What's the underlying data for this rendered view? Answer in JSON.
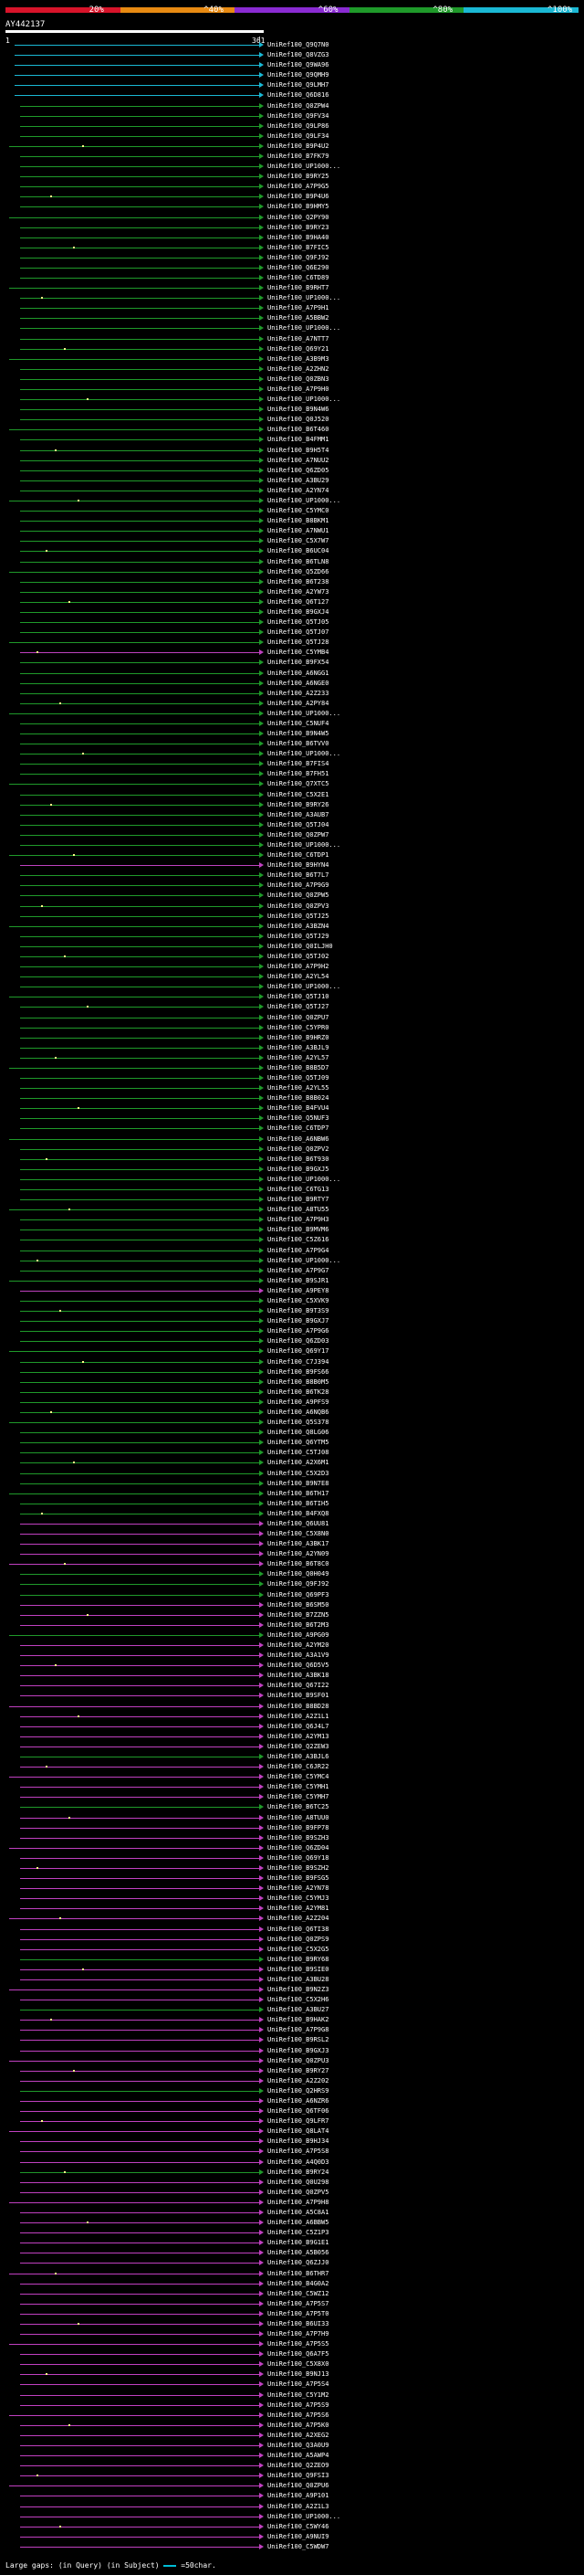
{
  "scale": {
    "segments": [
      {
        "color": "#d8142a"
      },
      {
        "color": "#e88a12"
      },
      {
        "color": "#8a2bd2"
      },
      {
        "color": "#1f9a2a"
      },
      {
        "color": "#1ab8d4"
      }
    ],
    "labels": [
      "20%",
      "^40%",
      "^60%",
      "^80%",
      "^100%"
    ]
  },
  "query": {
    "id": "AY442137",
    "start": "1",
    "end": "361"
  },
  "colors": {
    "cyan": "#1ab8d4",
    "green": "#1f9a2a",
    "magenta": "#c040c0",
    "dot": "#ffff80"
  },
  "rows": [
    {
      "l": "UniRef100_Q9Q7N0",
      "c": "cyan"
    },
    {
      "l": "UniRef100_Q8VZG3",
      "c": "cyan"
    },
    {
      "l": "UniRef100_Q9WA96",
      "c": "cyan"
    },
    {
      "l": "UniRef100_Q9QMH9",
      "c": "cyan"
    },
    {
      "l": "UniRef100_Q9LMH7",
      "c": "cyan"
    },
    {
      "l": "UniRef100_Q6D816",
      "c": "cyan"
    },
    {
      "l": "UniRef100_Q0ZPW4",
      "c": "green"
    },
    {
      "l": "UniRef100_Q9FV34",
      "c": "green"
    },
    {
      "l": "UniRef100_Q9LP86",
      "c": "green"
    },
    {
      "l": "UniRef100_Q9LF34",
      "c": "green"
    },
    {
      "l": "UniRef100_B9P4U2",
      "c": "green"
    },
    {
      "l": "UniRef100_B7FK79",
      "c": "green"
    },
    {
      "l": "UniRef100_UP1000...",
      "c": "green"
    },
    {
      "l": "UniRef100_B9RY25",
      "c": "green"
    },
    {
      "l": "UniRef100_A7P9G5",
      "c": "green"
    },
    {
      "l": "UniRef100_B9P4U6",
      "c": "green"
    },
    {
      "l": "UniRef100_B9HMY5",
      "c": "green"
    },
    {
      "l": "UniRef100_Q2PY90",
      "c": "green"
    },
    {
      "l": "UniRef100_B9RY23",
      "c": "green"
    },
    {
      "l": "UniRef100_B9HA40",
      "c": "green"
    },
    {
      "l": "UniRef100_B7FIC5",
      "c": "green"
    },
    {
      "l": "UniRef100_Q9FJ92",
      "c": "green"
    },
    {
      "l": "UniRef100_Q6E290",
      "c": "green"
    },
    {
      "l": "UniRef100_C6TD89",
      "c": "green"
    },
    {
      "l": "UniRef100_B9RHT7",
      "c": "green"
    },
    {
      "l": "UniRef100_UP1000...",
      "c": "green"
    },
    {
      "l": "UniRef100_A7P9H1",
      "c": "green"
    },
    {
      "l": "UniRef100_A5BBW2",
      "c": "green"
    },
    {
      "l": "UniRef100_UP1000...",
      "c": "green"
    },
    {
      "l": "UniRef100_A7NTT7",
      "c": "green"
    },
    {
      "l": "UniRef100_Q69Y21",
      "c": "green"
    },
    {
      "l": "UniRef100_A3B9M3",
      "c": "green"
    },
    {
      "l": "UniRef100_A2ZHN2",
      "c": "green"
    },
    {
      "l": "UniRef100_Q0ZBN3",
      "c": "green"
    },
    {
      "l": "UniRef100_A7P9H0",
      "c": "green"
    },
    {
      "l": "UniRef100_UP1000...",
      "c": "green"
    },
    {
      "l": "UniRef100_B9N4W6",
      "c": "green"
    },
    {
      "l": "UniRef100_Q0J520",
      "c": "green"
    },
    {
      "l": "UniRef100_B6T460",
      "c": "green"
    },
    {
      "l": "UniRef100_B4FMM1",
      "c": "green"
    },
    {
      "l": "UniRef100_B9H5T4",
      "c": "green"
    },
    {
      "l": "UniRef100_A7NUU2",
      "c": "green"
    },
    {
      "l": "UniRef100_Q6ZD05",
      "c": "green"
    },
    {
      "l": "UniRef100_A3BU29",
      "c": "green"
    },
    {
      "l": "UniRef100_A2YN74",
      "c": "green"
    },
    {
      "l": "UniRef100_UP1000...",
      "c": "green"
    },
    {
      "l": "UniRef100_C5YMC0",
      "c": "green"
    },
    {
      "l": "UniRef100_B8BKM1",
      "c": "green"
    },
    {
      "l": "UniRef100_A7NWU1",
      "c": "green"
    },
    {
      "l": "UniRef100_C5X7W7",
      "c": "green"
    },
    {
      "l": "UniRef100_B6UC04",
      "c": "green"
    },
    {
      "l": "UniRef100_B6TLN8",
      "c": "green"
    },
    {
      "l": "UniRef100_Q5ZD66",
      "c": "green"
    },
    {
      "l": "UniRef100_B6T238",
      "c": "green"
    },
    {
      "l": "UniRef100_A2YW73",
      "c": "green"
    },
    {
      "l": "UniRef100_Q6T127",
      "c": "green"
    },
    {
      "l": "UniRef100_B9GXJ4",
      "c": "green"
    },
    {
      "l": "UniRef100_Q5TJ05",
      "c": "green"
    },
    {
      "l": "UniRef100_Q5TJ07",
      "c": "green"
    },
    {
      "l": "UniRef100_Q5TJ28",
      "c": "green"
    },
    {
      "l": "UniRef100_C5YMB4",
      "c": "magenta"
    },
    {
      "l": "UniRef100_B9FX54",
      "c": "green"
    },
    {
      "l": "UniRef100_A6NGG1",
      "c": "green"
    },
    {
      "l": "UniRef100_A6NGE0",
      "c": "green"
    },
    {
      "l": "UniRef100_A2Z233",
      "c": "green"
    },
    {
      "l": "UniRef100_A2PY84",
      "c": "green"
    },
    {
      "l": "UniRef100_UP1000...",
      "c": "green"
    },
    {
      "l": "UniRef100_C5NUF4",
      "c": "green"
    },
    {
      "l": "UniRef100_B9N4W5",
      "c": "green"
    },
    {
      "l": "UniRef100_B6TVV0",
      "c": "green"
    },
    {
      "l": "UniRef100_UP1000...",
      "c": "green"
    },
    {
      "l": "UniRef100_B7FIS4",
      "c": "green"
    },
    {
      "l": "UniRef100_B7FH51",
      "c": "green"
    },
    {
      "l": "UniRef100_Q7XTC5",
      "c": "green"
    },
    {
      "l": "UniRef100_C5X2E1",
      "c": "green"
    },
    {
      "l": "UniRef100_B9RY26",
      "c": "green"
    },
    {
      "l": "UniRef100_A3AUB7",
      "c": "green"
    },
    {
      "l": "UniRef100_Q5TJ04",
      "c": "green"
    },
    {
      "l": "UniRef100_Q0ZPW7",
      "c": "green"
    },
    {
      "l": "UniRef100_UP1000...",
      "c": "green"
    },
    {
      "l": "UniRef100_C6TDP1",
      "c": "green"
    },
    {
      "l": "UniRef100_B9HYN4",
      "c": "magenta"
    },
    {
      "l": "UniRef100_B6T7L7",
      "c": "green"
    },
    {
      "l": "UniRef100_A7P9G9",
      "c": "green"
    },
    {
      "l": "UniRef100_Q0ZPW5",
      "c": "green"
    },
    {
      "l": "UniRef100_Q0ZPV3",
      "c": "green"
    },
    {
      "l": "UniRef100_Q5TJ25",
      "c": "green"
    },
    {
      "l": "UniRef100_A3BZN4",
      "c": "green"
    },
    {
      "l": "UniRef100_Q5TJ29",
      "c": "green"
    },
    {
      "l": "UniRef100_Q0ILJH0",
      "c": "green"
    },
    {
      "l": "UniRef100_Q5TJ02",
      "c": "green"
    },
    {
      "l": "UniRef100_A7P9H2",
      "c": "green"
    },
    {
      "l": "UniRef100_A2YL54",
      "c": "green"
    },
    {
      "l": "UniRef100_UP1000...",
      "c": "green"
    },
    {
      "l": "UniRef100_Q5TJ10",
      "c": "green"
    },
    {
      "l": "UniRef100_Q5TJ27",
      "c": "green"
    },
    {
      "l": "UniRef100_Q0ZPU7",
      "c": "green"
    },
    {
      "l": "UniRef100_C5YPR0",
      "c": "green"
    },
    {
      "l": "UniRef100_B9HRZ0",
      "c": "green"
    },
    {
      "l": "UniRef100_A3BJL9",
      "c": "green"
    },
    {
      "l": "UniRef100_A2YL57",
      "c": "green"
    },
    {
      "l": "UniRef100_B8B5D7",
      "c": "green"
    },
    {
      "l": "UniRef100_Q5TJ09",
      "c": "green"
    },
    {
      "l": "UniRef100_A2YL55",
      "c": "green"
    },
    {
      "l": "UniRef100_B8B024",
      "c": "green"
    },
    {
      "l": "UniRef100_B4FVU4",
      "c": "green"
    },
    {
      "l": "UniRef100_Q5NUF3",
      "c": "green"
    },
    {
      "l": "UniRef100_C6TDP7",
      "c": "green"
    },
    {
      "l": "UniRef100_A6NBW6",
      "c": "green"
    },
    {
      "l": "UniRef100_Q0ZPV2",
      "c": "green"
    },
    {
      "l": "UniRef100_B6T930",
      "c": "green"
    },
    {
      "l": "UniRef100_B9GXJ5",
      "c": "green"
    },
    {
      "l": "UniRef100_UP1000...",
      "c": "green"
    },
    {
      "l": "UniRef100_C6TG13",
      "c": "green"
    },
    {
      "l": "UniRef100_B9RTY7",
      "c": "green"
    },
    {
      "l": "UniRef100_A8TU55",
      "c": "green"
    },
    {
      "l": "UniRef100_A7P9H3",
      "c": "green"
    },
    {
      "l": "UniRef100_B9MVM6",
      "c": "green"
    },
    {
      "l": "UniRef100_C5Z616",
      "c": "green"
    },
    {
      "l": "UniRef100_A7P9G4",
      "c": "green"
    },
    {
      "l": "UniRef100_UP1000...",
      "c": "green"
    },
    {
      "l": "UniRef100_A7P9G7",
      "c": "green"
    },
    {
      "l": "UniRef100_B9SJR1",
      "c": "green"
    },
    {
      "l": "UniRef100_A9PEY8",
      "c": "magenta"
    },
    {
      "l": "UniRef100_C5XVK9",
      "c": "green"
    },
    {
      "l": "UniRef100_B9T3S9",
      "c": "green"
    },
    {
      "l": "UniRef100_B9GXJ7",
      "c": "green"
    },
    {
      "l": "UniRef100_A7P9G6",
      "c": "green"
    },
    {
      "l": "UniRef100_Q6ZD03",
      "c": "green"
    },
    {
      "l": "UniRef100_Q69Y17",
      "c": "green"
    },
    {
      "l": "UniRef100_C7J394",
      "c": "green"
    },
    {
      "l": "UniRef100_B9FS66",
      "c": "green"
    },
    {
      "l": "UniRef100_B8B0M5",
      "c": "green"
    },
    {
      "l": "UniRef100_B6TK28",
      "c": "green"
    },
    {
      "l": "UniRef100_A9PFS9",
      "c": "green"
    },
    {
      "l": "UniRef100_A6NQB6",
      "c": "green"
    },
    {
      "l": "UniRef100_Q5S378",
      "c": "green"
    },
    {
      "l": "UniRef100_Q8LG06",
      "c": "green"
    },
    {
      "l": "UniRef100_Q6YTM5",
      "c": "green"
    },
    {
      "l": "UniRef100_C5TJ08",
      "c": "green"
    },
    {
      "l": "UniRef100_A2X6M1",
      "c": "green"
    },
    {
      "l": "UniRef100_C5X2D3",
      "c": "green"
    },
    {
      "l": "UniRef100_B9N7E8",
      "c": "green"
    },
    {
      "l": "UniRef100_B6TH17",
      "c": "green"
    },
    {
      "l": "UniRef100_B6TIH5",
      "c": "green"
    },
    {
      "l": "UniRef100_B4FXQ8",
      "c": "green"
    },
    {
      "l": "UniRef100_Q6UU81",
      "c": "magenta"
    },
    {
      "l": "UniRef100_C5X8N0",
      "c": "magenta"
    },
    {
      "l": "UniRef100_A3BK17",
      "c": "magenta"
    },
    {
      "l": "UniRef100_A2YN09",
      "c": "magenta"
    },
    {
      "l": "UniRef100_B6T8C0",
      "c": "magenta"
    },
    {
      "l": "UniRef100_Q0H049",
      "c": "green"
    },
    {
      "l": "UniRef100_Q9FJ92",
      "c": "green"
    },
    {
      "l": "UniRef100_Q69PF3",
      "c": "green"
    },
    {
      "l": "UniRef100_B6SM50",
      "c": "magenta"
    },
    {
      "l": "UniRef100_B7ZZN5",
      "c": "magenta"
    },
    {
      "l": "UniRef100_B6T2M3",
      "c": "magenta"
    },
    {
      "l": "UniRef100_A9PG09",
      "c": "green"
    },
    {
      "l": "UniRef100_A2YM20",
      "c": "magenta"
    },
    {
      "l": "UniRef100_A3A1V9",
      "c": "magenta"
    },
    {
      "l": "UniRef100_Q6D5V5",
      "c": "magenta"
    },
    {
      "l": "UniRef100_A3BK18",
      "c": "magenta"
    },
    {
      "l": "UniRef100_Q67I22",
      "c": "magenta"
    },
    {
      "l": "UniRef100_B9SF01",
      "c": "magenta"
    },
    {
      "l": "UniRef100_B8BD28",
      "c": "magenta"
    },
    {
      "l": "UniRef100_A2Z1L1",
      "c": "magenta"
    },
    {
      "l": "UniRef100_Q6J4L7",
      "c": "magenta"
    },
    {
      "l": "UniRef100_A2YM13",
      "c": "magenta"
    },
    {
      "l": "UniRef100_Q2ZEW3",
      "c": "magenta"
    },
    {
      "l": "UniRef100_A3BJL6",
      "c": "green"
    },
    {
      "l": "UniRef100_C6JR22",
      "c": "magenta"
    },
    {
      "l": "UniRef100_C5YMC4",
      "c": "magenta"
    },
    {
      "l": "UniRef100_C5YMH1",
      "c": "magenta"
    },
    {
      "l": "UniRef100_C5YMH7",
      "c": "magenta"
    },
    {
      "l": "UniRef100_B6TC25",
      "c": "green"
    },
    {
      "l": "UniRef100_A8TUU0",
      "c": "magenta"
    },
    {
      "l": "UniRef100_B9FP78",
      "c": "magenta"
    },
    {
      "l": "UniRef100_B9SZH3",
      "c": "magenta"
    },
    {
      "l": "UniRef100_Q6ZD04",
      "c": "magenta"
    },
    {
      "l": "UniRef100_Q69Y18",
      "c": "magenta"
    },
    {
      "l": "UniRef100_B9SZH2",
      "c": "magenta"
    },
    {
      "l": "UniRef100_B9FSG5",
      "c": "magenta"
    },
    {
      "l": "UniRef100_A2YN78",
      "c": "magenta"
    },
    {
      "l": "UniRef100_C5YMJ3",
      "c": "magenta"
    },
    {
      "l": "UniRef100_A2YM81",
      "c": "magenta"
    },
    {
      "l": "UniRef100_A2Z204",
      "c": "magenta"
    },
    {
      "l": "UniRef100_Q6TI38",
      "c": "magenta"
    },
    {
      "l": "UniRef100_Q0ZPS9",
      "c": "magenta"
    },
    {
      "l": "UniRef100_C5X2G5",
      "c": "magenta"
    },
    {
      "l": "UniRef100_B9RY68",
      "c": "green"
    },
    {
      "l": "UniRef100_B9SIE0",
      "c": "magenta"
    },
    {
      "l": "UniRef100_A3BU28",
      "c": "magenta"
    },
    {
      "l": "UniRef100_B9N2Z3",
      "c": "magenta"
    },
    {
      "l": "UniRef100_C5X2H6",
      "c": "magenta"
    },
    {
      "l": "UniRef100_A3BU27",
      "c": "green"
    },
    {
      "l": "UniRef100_B9HAK2",
      "c": "magenta"
    },
    {
      "l": "UniRef100_A7P9G8",
      "c": "magenta"
    },
    {
      "l": "UniRef100_B9RSL2",
      "c": "magenta"
    },
    {
      "l": "UniRef100_B9GXJ3",
      "c": "magenta"
    },
    {
      "l": "UniRef100_Q0ZPU3",
      "c": "magenta"
    },
    {
      "l": "UniRef100_B9RY27",
      "c": "magenta"
    },
    {
      "l": "UniRef100_A2Z202",
      "c": "magenta"
    },
    {
      "l": "UniRef100_Q2HRS9",
      "c": "green"
    },
    {
      "l": "UniRef100_A6NZR6",
      "c": "magenta"
    },
    {
      "l": "UniRef100_Q6TF06",
      "c": "magenta"
    },
    {
      "l": "UniRef100_Q9LFR7",
      "c": "magenta"
    },
    {
      "l": "UniRef100_Q8LAT4",
      "c": "magenta"
    },
    {
      "l": "UniRef100_B9HJ34",
      "c": "magenta"
    },
    {
      "l": "UniRef100_A7P5S8",
      "c": "magenta"
    },
    {
      "l": "UniRef100_A4Q0D3",
      "c": "magenta"
    },
    {
      "l": "UniRef100_B9RY24",
      "c": "green"
    },
    {
      "l": "UniRef100_Q0U298",
      "c": "magenta"
    },
    {
      "l": "UniRef100_Q0ZPV5",
      "c": "magenta"
    },
    {
      "l": "UniRef100_A7P9H8",
      "c": "magenta"
    },
    {
      "l": "UniRef100_A5C8A1",
      "c": "magenta"
    },
    {
      "l": "UniRef100_A6BBW5",
      "c": "magenta"
    },
    {
      "l": "UniRef100_C5Z1P3",
      "c": "magenta"
    },
    {
      "l": "UniRef100_B9G1E1",
      "c": "magenta"
    },
    {
      "l": "UniRef100_A5B056",
      "c": "magenta"
    },
    {
      "l": "UniRef100_Q6ZJJ0",
      "c": "magenta"
    },
    {
      "l": "UniRef100_B6THR7",
      "c": "magenta"
    },
    {
      "l": "UniRef100_B4G0A2",
      "c": "magenta"
    },
    {
      "l": "UniRef100_C5WZ12",
      "c": "magenta"
    },
    {
      "l": "UniRef100_A7P5S7",
      "c": "magenta"
    },
    {
      "l": "UniRef100_A7P5T0",
      "c": "magenta"
    },
    {
      "l": "UniRef100_B6UI33",
      "c": "magenta"
    },
    {
      "l": "UniRef100_A7P7H9",
      "c": "magenta"
    },
    {
      "l": "UniRef100_A7P5S5",
      "c": "magenta"
    },
    {
      "l": "UniRef100_Q6A7F5",
      "c": "magenta"
    },
    {
      "l": "UniRef100_C5X8X0",
      "c": "magenta"
    },
    {
      "l": "UniRef100_B9NJ13",
      "c": "magenta"
    },
    {
      "l": "UniRef100_A7P5S4",
      "c": "magenta"
    },
    {
      "l": "UniRef100_C5Y1M2",
      "c": "magenta"
    },
    {
      "l": "UniRef100_A7P5S9",
      "c": "magenta"
    },
    {
      "l": "UniRef100_A7P5S6",
      "c": "magenta"
    },
    {
      "l": "UniRef100_A7P5K0",
      "c": "magenta"
    },
    {
      "l": "UniRef100_A2XEG2",
      "c": "magenta"
    },
    {
      "l": "UniRef100_Q3A0U9",
      "c": "magenta"
    },
    {
      "l": "UniRef100_A5AWP4",
      "c": "magenta"
    },
    {
      "l": "UniRef100_Q2ZEO9",
      "c": "magenta"
    },
    {
      "l": "UniRef100_Q9FSI3",
      "c": "magenta"
    },
    {
      "l": "UniRef100_Q0ZPU6",
      "c": "magenta"
    },
    {
      "l": "UniRef100_A9P101",
      "c": "magenta"
    },
    {
      "l": "UniRef100_A2Z1L3",
      "c": "magenta"
    },
    {
      "l": "UniRef100_UP1000...",
      "c": "magenta"
    },
    {
      "l": "UniRef100_C5WY46",
      "c": "magenta"
    },
    {
      "l": "UniRef100_A9NUI9",
      "c": "magenta"
    },
    {
      "l": "UniRef100_C5WDW7",
      "c": "magenta"
    }
  ],
  "footer": {
    "large_gaps": "Large gaps:",
    "in_query": "(in Query)",
    "in_subject": "(in Subject)",
    "legend": "=50char."
  }
}
